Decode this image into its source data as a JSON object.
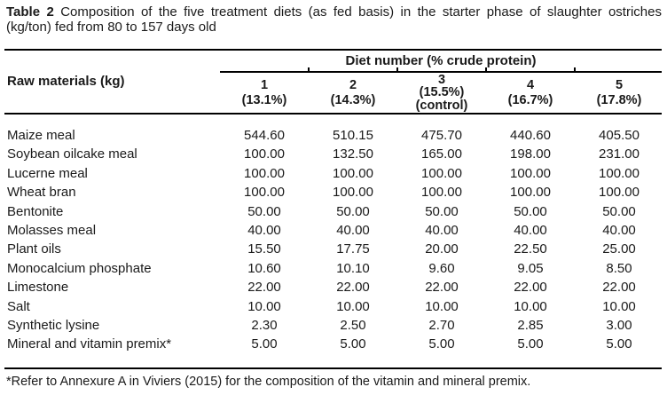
{
  "page": {
    "background": "#ffffff",
    "text_color": "#1a1a1a",
    "rule_color": "#000000"
  },
  "caption": {
    "label": "Table 2",
    "line1_rest": "Composition of the five treatment diets (as fed basis) in the starter phase of slaughter ostriches",
    "line2": "(kg/ton) fed from 80 to 157 days old"
  },
  "table": {
    "row_header": "Raw materials (kg)",
    "group_header": "Diet number (% crude protein)",
    "columns": [
      {
        "number": "1",
        "protein": "(13.1%)",
        "note": ""
      },
      {
        "number": "2",
        "protein": "(14.3%)",
        "note": ""
      },
      {
        "number": "3",
        "protein": "(15.5%)",
        "note": "(control)"
      },
      {
        "number": "4",
        "protein": "(16.7%)",
        "note": ""
      },
      {
        "number": "5",
        "protein": "(17.8%)",
        "note": ""
      }
    ],
    "rows": [
      {
        "label": "Maize meal",
        "values": [
          "544.60",
          "510.15",
          "475.70",
          "440.60",
          "405.50"
        ]
      },
      {
        "label": "Soybean oilcake meal",
        "values": [
          "100.00",
          "132.50",
          "165.00",
          "198.00",
          "231.00"
        ]
      },
      {
        "label": "Lucerne meal",
        "values": [
          "100.00",
          "100.00",
          "100.00",
          "100.00",
          "100.00"
        ]
      },
      {
        "label": "Wheat bran",
        "values": [
          "100.00",
          "100.00",
          "100.00",
          "100.00",
          "100.00"
        ]
      },
      {
        "label": "Bentonite",
        "values": [
          "50.00",
          "50.00",
          "50.00",
          "50.00",
          "50.00"
        ]
      },
      {
        "label": "Molasses meal",
        "values": [
          "40.00",
          "40.00",
          "40.00",
          "40.00",
          "40.00"
        ]
      },
      {
        "label": "Plant oils",
        "values": [
          "15.50",
          "17.75",
          "20.00",
          "22.50",
          "25.00"
        ]
      },
      {
        "label": "Monocalcium phosphate",
        "values": [
          "10.60",
          "10.10",
          "9.60",
          "9.05",
          "8.50"
        ]
      },
      {
        "label": "Limestone",
        "values": [
          "22.00",
          "22.00",
          "22.00",
          "22.00",
          "22.00"
        ]
      },
      {
        "label": "Salt",
        "values": [
          "10.00",
          "10.00",
          "10.00",
          "10.00",
          "10.00"
        ]
      },
      {
        "label": "Synthetic lysine",
        "values": [
          "2.30",
          "2.50",
          "2.70",
          "2.85",
          "3.00"
        ]
      },
      {
        "label": "Mineral and vitamin premix*",
        "values": [
          "5.00",
          "5.00",
          "5.00",
          "5.00",
          "5.00"
        ]
      }
    ]
  },
  "footnote": "*Refer to Annexure A in Viviers (2015) for the composition of the vitamin and mineral premix."
}
